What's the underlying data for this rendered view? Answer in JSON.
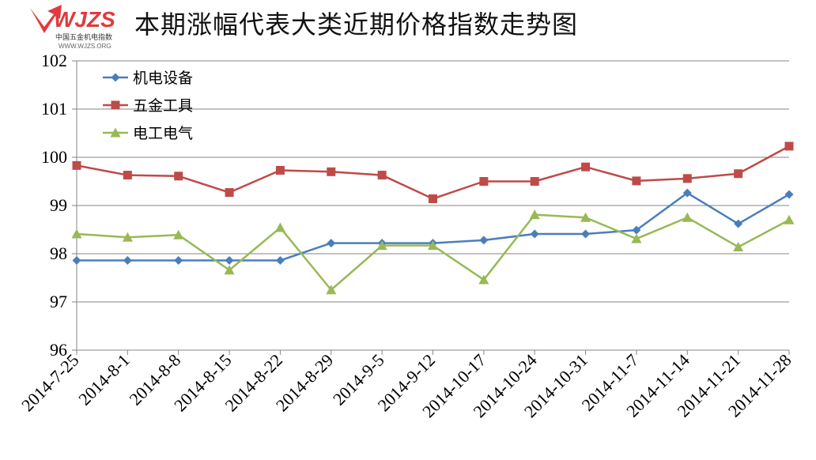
{
  "title": "本期涨幅代表大类近期价格指数走势图",
  "logo": {
    "brand": "WJZS",
    "tagline": "中国五金机电指数",
    "url": "WWW.WJZS.ORG",
    "color": "#e03a3e"
  },
  "chart_data": {
    "type": "line",
    "title": "本期涨幅代表大类近期价格指数走势图",
    "xlabel": "",
    "ylabel": "",
    "ylim": [
      96,
      102
    ],
    "yticks": [
      96,
      97,
      98,
      99,
      100,
      101,
      102
    ],
    "grid": true,
    "legend_position": "top-left",
    "categories": [
      "2014-7-25",
      "2014-8-1",
      "2014-8-8",
      "2014-8-15",
      "2014-8-22",
      "2014-8-29",
      "2014-9-5",
      "2014-9-12",
      "2014-10-17",
      "2014-10-24",
      "2014-10-31",
      "2014-11-7",
      "2014-11-14",
      "2014-11-21",
      "2014-11-28"
    ],
    "series": [
      {
        "name": "机电设备",
        "color": "#4a7ebb",
        "marker": "diamond",
        "values": [
          97.86,
          97.86,
          97.86,
          97.86,
          97.86,
          98.22,
          98.22,
          98.22,
          98.28,
          98.41,
          98.41,
          98.49,
          99.26,
          98.62,
          99.23
        ]
      },
      {
        "name": "五金工具",
        "color": "#be4b48",
        "marker": "square",
        "values": [
          99.83,
          99.63,
          99.61,
          99.27,
          99.73,
          99.7,
          99.63,
          99.14,
          99.5,
          99.5,
          99.8,
          99.51,
          99.56,
          99.66,
          100.23
        ]
      },
      {
        "name": "电工电气",
        "color": "#98b954",
        "marker": "triangle",
        "values": [
          98.41,
          98.34,
          98.39,
          97.66,
          98.54,
          97.25,
          98.17,
          98.17,
          97.46,
          98.81,
          98.75,
          98.31,
          98.75,
          98.14,
          98.7
        ]
      }
    ]
  }
}
